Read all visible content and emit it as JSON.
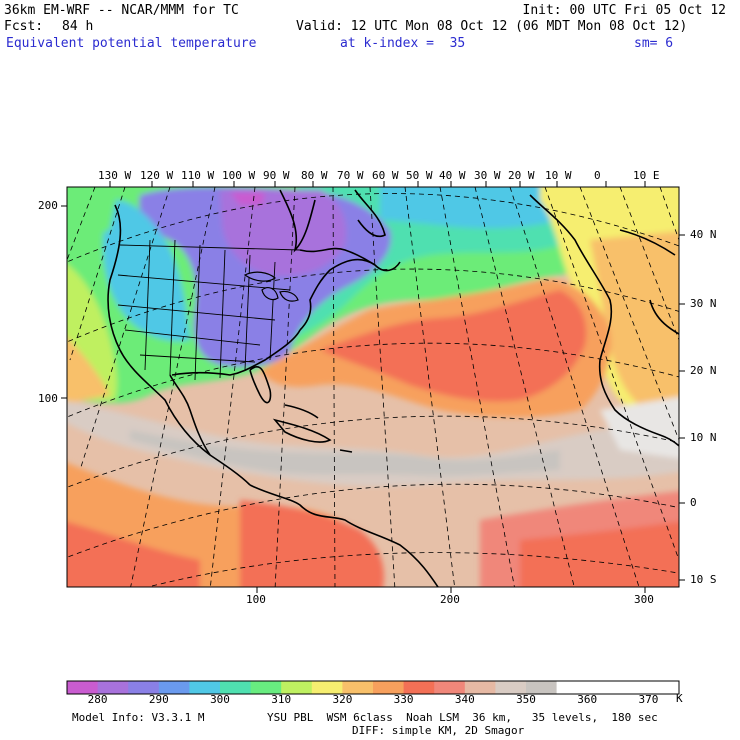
{
  "header": {
    "model": "36km EM-WRF -- NCAR/MMM for TC",
    "init": "Init: 00 UTC Fri 05 Oct 12",
    "fcst_label": "Fcst:",
    "fcst_value": "84 h",
    "valid": "Valid: 12 UTC Mon 08 Oct 12 (06 MDT Mon 08 Oct 12)",
    "field": "Equivalent potential temperature",
    "level": "at k-index =  35",
    "smooth": "sm= 6"
  },
  "map": {
    "lon_labels": [
      "130 W",
      "120 W",
      "110 W",
      "100 W",
      "90 W",
      "80 W",
      "70 W",
      "60 W",
      "50 W",
      "40 W",
      "30 W",
      "20 W",
      "10 W",
      "0",
      "10 E"
    ],
    "lat_labels": [
      "40 N",
      "30 N",
      "20 N",
      "10 N",
      "0",
      "10 S"
    ],
    "grid_x_labels": [
      "100",
      "200",
      "300"
    ],
    "grid_y_labels": [
      "200",
      "100"
    ],
    "colors": {
      "purple": "#c95cd0",
      "violet": "#9d72dc",
      "blue_violet": "#7f86e6",
      "blue": "#5fa0ee",
      "cyan": "#4fd4d4",
      "teal_green": "#52e6a8",
      "green": "#6cec78",
      "yellow_green": "#bff061",
      "yellow": "#f6ee70",
      "light_orange": "#f8c06a",
      "orange": "#f7a05d",
      "red_orange": "#f37056",
      "salmon": "#f0877a",
      "tan": "#e6c0a8",
      "gray": "#c8c4c0"
    }
  },
  "colorbar": {
    "labels": [
      "280",
      "290",
      "300",
      "310",
      "320",
      "330",
      "340",
      "350",
      "360",
      "370"
    ],
    "unit": "K",
    "colors": [
      "#c95cd0",
      "#a872dc",
      "#8a80e6",
      "#6a9aee",
      "#50c8e6",
      "#4fe0b0",
      "#68ec80",
      "#bff061",
      "#f6ee70",
      "#f8c06a",
      "#f7a05d",
      "#f37056",
      "#f0877a",
      "#e6b9a4",
      "#d9ccc4",
      "#c8c4c0",
      "#ffffff",
      "#ffffff",
      "#ffffff",
      "#ffffff"
    ]
  },
  "footer": {
    "model_info": "Model Info: V3.3.1 M",
    "physics": "YSU PBL  WSM 6class  Noah LSM  36 km,   35 levels,  180 sec",
    "diffusion": "DIFF: simple KM, 2D Smagor"
  }
}
